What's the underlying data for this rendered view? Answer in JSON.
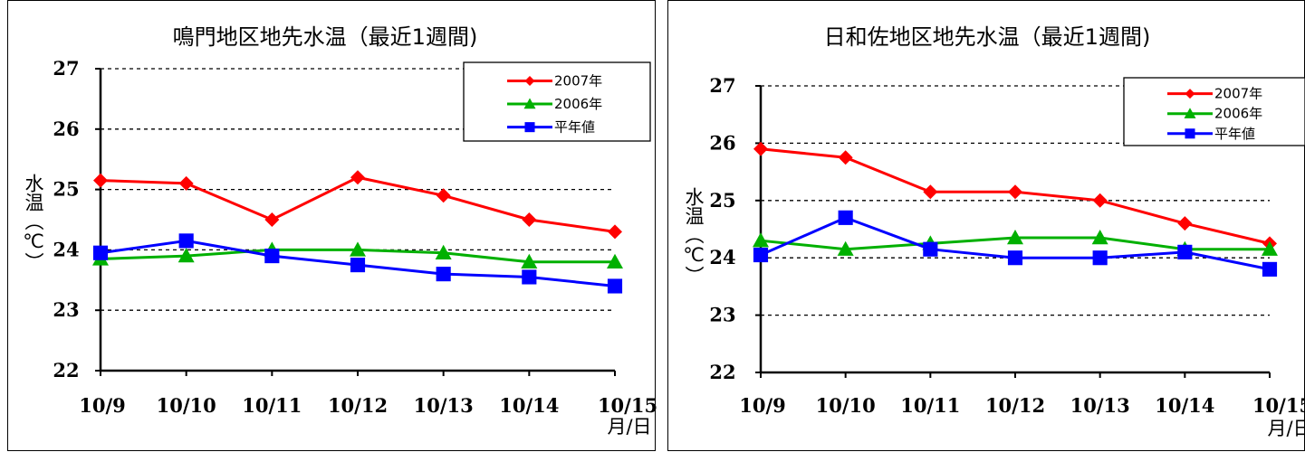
{
  "chart_data": [
    {
      "type": "line",
      "title": "鳴門地区地先水温（最近1週間)",
      "ylabel": "水温（℃）",
      "xunit": "月/日",
      "categories": [
        "10/9",
        "10/10",
        "10/11",
        "10/12",
        "10/13",
        "10/14",
        "10/15"
      ],
      "ylim": [
        22,
        27
      ],
      "yticks": [
        "27",
        "26",
        "25",
        "24",
        "23",
        "22"
      ],
      "grid": "dashed horizontal",
      "legend_position": "top-right",
      "series": [
        {
          "name": "2007年",
          "color": "#ff0000",
          "marker": "diamond",
          "values": [
            25.15,
            25.1,
            24.5,
            25.2,
            24.9,
            24.5,
            24.3
          ]
        },
        {
          "name": "2006年",
          "color": "#00b000",
          "marker": "triangle",
          "values": [
            23.85,
            23.9,
            24.0,
            24.0,
            23.95,
            23.8,
            23.8
          ]
        },
        {
          "name": "平年値",
          "color": "#0000ff",
          "marker": "square",
          "values": [
            23.95,
            24.15,
            23.9,
            23.75,
            23.6,
            23.55,
            23.4
          ]
        }
      ]
    },
    {
      "type": "line",
      "title": "日和佐地区地先水温（最近1週間)",
      "ylabel": "水温（℃）",
      "xunit": "月/日",
      "categories": [
        "10/9",
        "10/10",
        "10/11",
        "10/12",
        "10/13",
        "10/14",
        "10/15"
      ],
      "ylim": [
        22,
        27
      ],
      "yticks": [
        "27",
        "26",
        "25",
        "24",
        "23",
        "22"
      ],
      "grid": "dashed horizontal",
      "legend_position": "top-right",
      "series": [
        {
          "name": "2007年",
          "color": "#ff0000",
          "marker": "diamond",
          "values": [
            25.9,
            25.75,
            25.15,
            25.15,
            25.0,
            24.6,
            24.25
          ]
        },
        {
          "name": "2006年",
          "color": "#00b000",
          "marker": "triangle",
          "values": [
            24.3,
            24.15,
            24.25,
            24.35,
            24.35,
            24.15,
            24.15
          ]
        },
        {
          "name": "平年値",
          "color": "#0000ff",
          "marker": "square",
          "values": [
            24.05,
            24.7,
            24.15,
            24.0,
            24.0,
            24.1,
            23.8
          ]
        }
      ]
    }
  ]
}
